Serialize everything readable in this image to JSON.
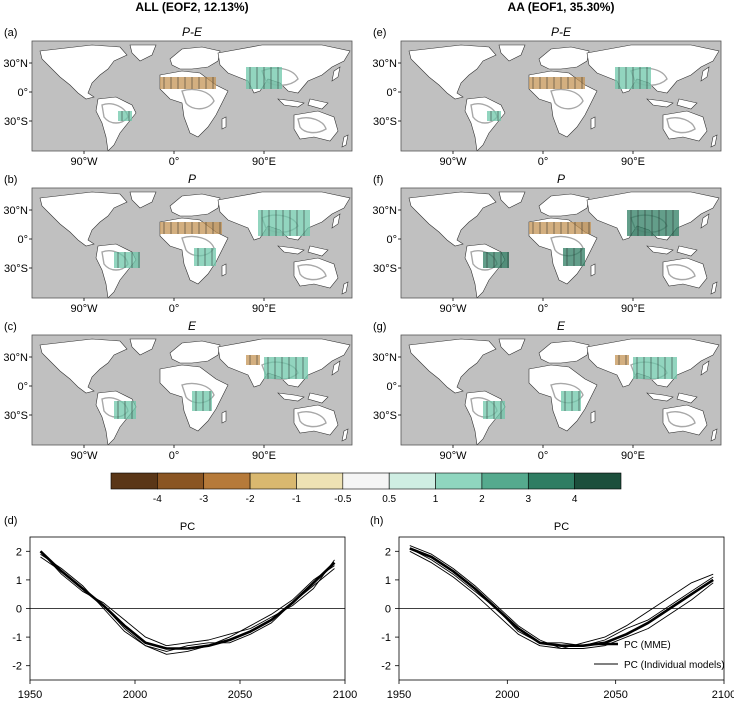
{
  "column_titles": [
    "ALL (EOF2, 12.13%)",
    "AA (EOF1, 35.30%)"
  ],
  "map_panels": [
    {
      "letter": "(a)",
      "title": "P-E",
      "col": 0,
      "row": 0
    },
    {
      "letter": "(b)",
      "title": "P",
      "col": 0,
      "row": 1
    },
    {
      "letter": "(c)",
      "title": "E",
      "col": 0,
      "row": 2
    },
    {
      "letter": "(e)",
      "title": "P-E",
      "col": 1,
      "row": 0
    },
    {
      "letter": "(f)",
      "title": "P",
      "col": 1,
      "row": 1
    },
    {
      "letter": "(g)",
      "title": "E",
      "col": 1,
      "row": 2
    }
  ],
  "map_lat_labels": [
    "30°N",
    "0°",
    "30°S"
  ],
  "map_lon_labels": [
    "90°W",
    "0°",
    "90°E"
  ],
  "colorbar": {
    "labels": [
      "-4",
      "-3",
      "-2",
      "-1",
      "-0.5",
      "0.5",
      "1",
      "2",
      "3",
      "4"
    ],
    "colors": [
      "#5a3617",
      "#8a5523",
      "#b67a3a",
      "#d9b86f",
      "#eee2b4",
      "#f5f5f5",
      "#cfeee3",
      "#8fd6bf",
      "#55aa8e",
      "#2f7d63",
      "#1c4f3c"
    ]
  },
  "colors": {
    "ocean": "#c0c0c0",
    "land": "#ffffff",
    "coast": "#333333",
    "brown": "#c49456",
    "teal": "#6ec7aa",
    "darkteal": "#2f7d63",
    "contour": "#a8a8a8"
  },
  "chart_data": [
    {
      "type": "line",
      "panel": "(d)",
      "title": "PC",
      "xlim": [
        1950,
        2100
      ],
      "ylim": [
        -2.5,
        2.5
      ],
      "xticks": [
        1950,
        2000,
        2050,
        2100
      ],
      "yticks": [
        2,
        1,
        0,
        -1,
        -2
      ],
      "x": [
        1955,
        1965,
        1975,
        1985,
        1995,
        2005,
        2015,
        2025,
        2035,
        2045,
        2055,
        2065,
        2075,
        2085,
        2095
      ],
      "series": [
        {
          "name": "PC (MME)",
          "weight": "thick",
          "values": [
            2.0,
            1.3,
            0.7,
            0.1,
            -0.6,
            -1.2,
            -1.4,
            -1.4,
            -1.3,
            -1.1,
            -0.8,
            -0.4,
            0.2,
            0.9,
            1.6
          ]
        },
        {
          "name": "PC (Individual models)",
          "weight": "thin",
          "values": [
            1.9,
            1.4,
            0.8,
            0.0,
            -0.8,
            -1.3,
            -1.6,
            -1.5,
            -1.3,
            -1.0,
            -0.6,
            -0.2,
            0.3,
            1.0,
            1.5
          ]
        },
        {
          "name": "PC (Individual models)",
          "weight": "thin",
          "values": [
            2.0,
            1.2,
            0.6,
            0.2,
            -0.4,
            -1.0,
            -1.3,
            -1.2,
            -1.1,
            -0.9,
            -0.7,
            -0.3,
            0.1,
            0.7,
            1.7
          ]
        },
        {
          "name": "PC (Individual models)",
          "weight": "thin",
          "values": [
            1.8,
            1.3,
            0.7,
            0.1,
            -0.7,
            -1.3,
            -1.5,
            -1.3,
            -1.2,
            -1.2,
            -0.9,
            -0.5,
            0.2,
            0.8,
            1.4
          ]
        }
      ]
    },
    {
      "type": "line",
      "panel": "(h)",
      "title": "PC",
      "xlim": [
        1950,
        2100
      ],
      "ylim": [
        -2.5,
        2.5
      ],
      "xticks": [
        1950,
        2000,
        2050,
        2100
      ],
      "yticks": [
        2,
        1,
        0,
        -1,
        -2
      ],
      "x": [
        1955,
        1965,
        1975,
        1985,
        1995,
        2005,
        2015,
        2025,
        2035,
        2045,
        2055,
        2065,
        2075,
        2085,
        2095
      ],
      "series": [
        {
          "name": "PC (MME)",
          "weight": "thick",
          "values": [
            2.1,
            1.8,
            1.3,
            0.7,
            0.0,
            -0.7,
            -1.2,
            -1.3,
            -1.3,
            -1.2,
            -0.9,
            -0.5,
            0.0,
            0.5,
            1.0
          ]
        },
        {
          "name": "PC (Individual models)",
          "weight": "thin",
          "values": [
            2.0,
            1.6,
            1.1,
            0.5,
            -0.2,
            -0.9,
            -1.3,
            -1.4,
            -1.2,
            -1.0,
            -0.6,
            -0.1,
            0.4,
            0.9,
            1.2
          ]
        },
        {
          "name": "PC (Individual models)",
          "weight": "thin",
          "values": [
            2.2,
            1.9,
            1.4,
            0.8,
            0.1,
            -0.6,
            -1.1,
            -1.4,
            -1.4,
            -1.3,
            -1.0,
            -0.7,
            -0.2,
            0.3,
            0.9
          ]
        },
        {
          "name": "PC (Individual models)",
          "weight": "thin",
          "values": [
            2.1,
            1.7,
            1.2,
            0.6,
            0.0,
            -0.8,
            -1.2,
            -1.2,
            -1.3,
            -1.1,
            -0.7,
            -0.4,
            0.1,
            0.6,
            1.1
          ]
        }
      ],
      "legend": [
        "PC (MME)",
        "PC (Individual models)"
      ]
    }
  ]
}
